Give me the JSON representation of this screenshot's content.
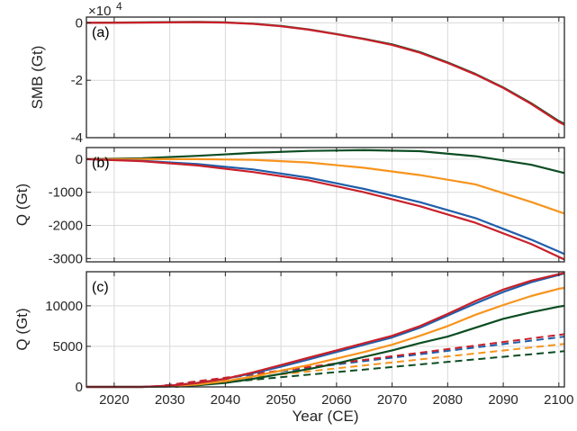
{
  "chart_data": [
    {
      "type": "line",
      "panel_label": "(a)",
      "ylabel": "SMB (Gt)",
      "exponent_label": "×10",
      "exponent_power": "4",
      "xlim": [
        2015,
        2101
      ],
      "ylim": [
        -40000,
        2000
      ],
      "yticks": [
        0,
        -20000,
        -40000
      ],
      "ytick_labels": [
        "0",
        "-2",
        "-4"
      ],
      "grid": true,
      "series": [
        {
          "color": "#0b4d22",
          "width": 2.2,
          "dash": false,
          "x": [
            2015,
            2025,
            2035,
            2040,
            2045,
            2050,
            2055,
            2060,
            2065,
            2070,
            2075,
            2080,
            2085,
            2090,
            2095,
            2100,
            2101
          ],
          "y": [
            0,
            150,
            300,
            150,
            -300,
            -1100,
            -2300,
            -3900,
            -5600,
            -7500,
            -10200,
            -13800,
            -17800,
            -22500,
            -28000,
            -34200,
            -35200
          ]
        },
        {
          "color": "#c8202a",
          "width": 2.2,
          "dash": false,
          "x": [
            2015,
            2025,
            2035,
            2040,
            2045,
            2050,
            2055,
            2060,
            2065,
            2070,
            2075,
            2080,
            2085,
            2090,
            2095,
            2100,
            2101
          ],
          "y": [
            0,
            100,
            250,
            100,
            -350,
            -1200,
            -2400,
            -4000,
            -5700,
            -7700,
            -10400,
            -14000,
            -18000,
            -22700,
            -28200,
            -34500,
            -35500
          ]
        }
      ]
    },
    {
      "type": "line",
      "panel_label": "(b)",
      "ylabel": "Q (Gt)",
      "xlim": [
        2015,
        2101
      ],
      "ylim": [
        -3100,
        350
      ],
      "yticks": [
        0,
        -1000,
        -2000,
        -3000
      ],
      "ytick_labels": [
        "0",
        "-1000",
        "-2000",
        "-3000"
      ],
      "grid": true,
      "series": [
        {
          "color": "#0b4d22",
          "width": 2.2,
          "dash": false,
          "x": [
            2015,
            2025,
            2035,
            2045,
            2055,
            2065,
            2075,
            2085,
            2095,
            2101
          ],
          "y": [
            0,
            30,
            100,
            190,
            250,
            270,
            240,
            90,
            -170,
            -420
          ]
        },
        {
          "color": "#f7941d",
          "width": 2.2,
          "dash": false,
          "x": [
            2015,
            2025,
            2035,
            2045,
            2055,
            2065,
            2075,
            2085,
            2095,
            2101
          ],
          "y": [
            0,
            0,
            0,
            -20,
            -100,
            -260,
            -480,
            -760,
            -1290,
            -1640
          ]
        },
        {
          "color": "#1f5fab",
          "width": 2.2,
          "dash": false,
          "x": [
            2015,
            2025,
            2035,
            2045,
            2055,
            2065,
            2075,
            2085,
            2095,
            2101
          ],
          "y": [
            0,
            -50,
            -150,
            -310,
            -560,
            -900,
            -1300,
            -1780,
            -2430,
            -2860
          ]
        },
        {
          "color": "#c8202a",
          "width": 2.2,
          "dash": false,
          "x": [
            2015,
            2025,
            2035,
            2045,
            2055,
            2065,
            2075,
            2085,
            2095,
            2101
          ],
          "y": [
            0,
            -60,
            -190,
            -390,
            -640,
            -1000,
            -1420,
            -1920,
            -2560,
            -3030
          ]
        }
      ]
    },
    {
      "type": "line",
      "panel_label": "(c)",
      "ylabel": "Q (Gt)",
      "xlabel": "Year (CE)",
      "xlim": [
        2015,
        2101
      ],
      "ylim": [
        0,
        14200
      ],
      "yticks": [
        0,
        5000,
        10000
      ],
      "ytick_labels": [
        "0",
        "5000",
        "10000"
      ],
      "xticks": [
        2020,
        2030,
        2040,
        2050,
        2060,
        2070,
        2080,
        2090,
        2100
      ],
      "xtick_labels": [
        "2020",
        "2030",
        "2040",
        "2050",
        "2060",
        "2070",
        "2080",
        "2090",
        "2100"
      ],
      "grid": true,
      "series": [
        {
          "color": "#0b4d22",
          "width": 2.0,
          "dash": true,
          "x": [
            2031,
            2101
          ],
          "y": [
            0,
            4400
          ]
        },
        {
          "color": "#f7941d",
          "width": 2.0,
          "dash": true,
          "x": [
            2029,
            2101
          ],
          "y": [
            0,
            5300
          ]
        },
        {
          "color": "#1f5fab",
          "width": 2.0,
          "dash": true,
          "x": [
            2027,
            2101
          ],
          "y": [
            0,
            6200
          ]
        },
        {
          "color": "#c8202a",
          "width": 2.0,
          "dash": true,
          "x": [
            2027,
            2101
          ],
          "y": [
            0,
            6500
          ]
        },
        {
          "color": "#0b4d22",
          "width": 2.2,
          "dash": false,
          "x": [
            2015,
            2025,
            2030,
            2035,
            2040,
            2045,
            2050,
            2055,
            2060,
            2065,
            2070,
            2075,
            2080,
            2085,
            2090,
            2095,
            2100,
            2101
          ],
          "y": [
            0,
            0,
            50,
            200,
            500,
            1000,
            1600,
            2200,
            2900,
            3700,
            4500,
            5400,
            6200,
            7300,
            8400,
            9200,
            9900,
            10000
          ]
        },
        {
          "color": "#f7941d",
          "width": 2.2,
          "dash": false,
          "x": [
            2015,
            2025,
            2030,
            2035,
            2040,
            2045,
            2050,
            2055,
            2060,
            2065,
            2070,
            2075,
            2080,
            2085,
            2090,
            2095,
            2100,
            2101
          ],
          "y": [
            0,
            0,
            100,
            300,
            700,
            1300,
            2000,
            2700,
            3500,
            4300,
            5200,
            6300,
            7500,
            8900,
            10100,
            11200,
            12100,
            12200
          ]
        },
        {
          "color": "#1f5fab",
          "width": 2.2,
          "dash": false,
          "x": [
            2015,
            2025,
            2030,
            2035,
            2040,
            2045,
            2050,
            2055,
            2060,
            2065,
            2070,
            2075,
            2080,
            2085,
            2090,
            2095,
            2100,
            2101
          ],
          "y": [
            0,
            0,
            150,
            500,
            1000,
            1700,
            2500,
            3400,
            4300,
            5200,
            6100,
            7300,
            8800,
            10300,
            11700,
            12900,
            13800,
            14000
          ]
        },
        {
          "color": "#c8202a",
          "width": 2.2,
          "dash": false,
          "x": [
            2015,
            2025,
            2030,
            2035,
            2040,
            2045,
            2050,
            2055,
            2060,
            2065,
            2070,
            2075,
            2080,
            2085,
            2090,
            2095,
            2100,
            2101
          ],
          "y": [
            0,
            0,
            150,
            500,
            1000,
            1800,
            2700,
            3600,
            4500,
            5400,
            6300,
            7500,
            9000,
            10600,
            12000,
            13100,
            13900,
            14050
          ]
        }
      ]
    }
  ]
}
